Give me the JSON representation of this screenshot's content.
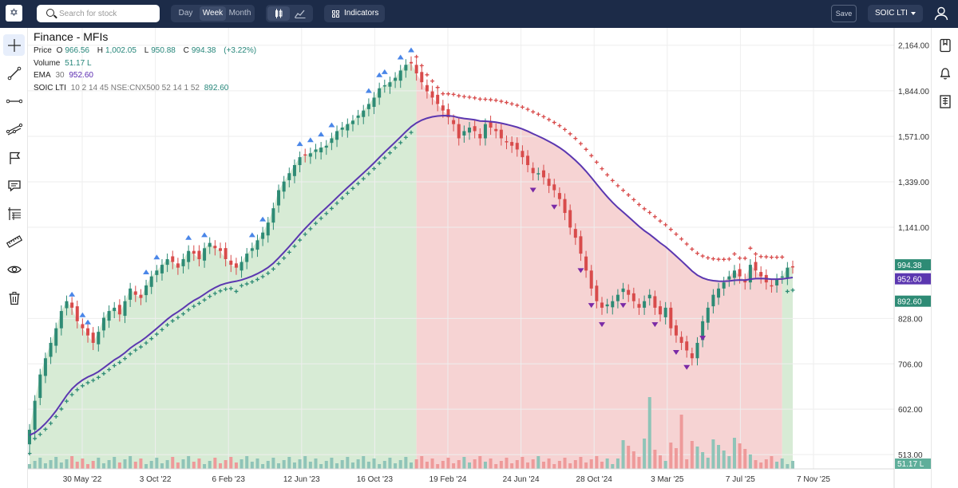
{
  "toolbar": {
    "logo": "✡",
    "search_placeholder": "Search for stock",
    "timeframes": [
      "Day",
      "Week",
      "Month"
    ],
    "active_timeframe": "Week",
    "indicators_label": "Indicators",
    "save_label": "Save",
    "symbol_label": "SOIC LTI"
  },
  "left_tools": [
    "crosshair-icon",
    "trend-line-icon",
    "horizontal-line-icon",
    "channel-icon",
    "flag-icon",
    "comment-icon",
    "fib-icon",
    "ruler-icon",
    "eye-icon",
    "trash-icon"
  ],
  "right_tools": [
    "bookmark-icon",
    "bell-icon",
    "building-icon"
  ],
  "legend": {
    "title": "Finance - MFIs",
    "price_label": "Price",
    "o_label": "O",
    "o_value": "966.56",
    "h_label": "H",
    "h_value": "1,002.05",
    "l_label": "L",
    "l_value": "950.88",
    "c_label": "C",
    "c_value": "994.38",
    "change": "(+3.22%)",
    "volume_label": "Volume",
    "volume_value": "51.17 L",
    "ema_label": "EMA",
    "ema_period": "30",
    "ema_value": "952.60",
    "soic_label": "SOIC LTI",
    "soic_params": "10 2 14 45 NSE:CNX500 52 14 1 52",
    "soic_value": "892.60"
  },
  "colors": {
    "up": "#2e8b75",
    "down": "#d84b4b",
    "ema": "#5b37b0",
    "bull_zone": "#d7ebd5",
    "bear_zone": "#f6d3d3",
    "signal_up": "#4a86e8",
    "signal_down": "#7a2aa6"
  },
  "chart_data": {
    "type": "candlestick",
    "title": "Finance - MFIs",
    "y_ticks": [
      "2,164.00",
      "1,844.00",
      "1,571.00",
      "1,339.00",
      "1,141.00",
      "828.00",
      "706.00",
      "602.00",
      "513.00"
    ],
    "x_ticks": [
      "30 May '22",
      "3 Oct '22",
      "6 Feb '23",
      "12 Jun '23",
      "16 Oct '23",
      "19 Feb '24",
      "24 Jun '24",
      "28 Oct '24",
      "3 Mar '25",
      "7 Jul '25",
      "7 Nov '25"
    ],
    "scale": "log",
    "price_labels": {
      "close": "994.38",
      "ema": "952.60",
      "soic": "892.60",
      "volume": "51.17 L"
    },
    "weekly_close": [
      560,
      620,
      680,
      720,
      760,
      800,
      850,
      880,
      860,
      820,
      800,
      780,
      760,
      790,
      830,
      850,
      860,
      840,
      880,
      920,
      900,
      890,
      930,
      960,
      980,
      1000,
      1020,
      1010,
      990,
      1020,
      1050,
      1040,
      1020,
      1060,
      1080,
      1060,
      1050,
      1020,
      1000,
      990,
      1010,
      1040,
      1060,
      1090,
      1120,
      1160,
      1220,
      1300,
      1340,
      1380,
      1420,
      1460,
      1470,
      1480,
      1500,
      1510,
      1520,
      1560,
      1600,
      1620,
      1640,
      1660,
      1690,
      1720,
      1760,
      1800,
      1860,
      1880,
      1900,
      1930,
      1980,
      2020,
      2030,
      1960,
      1900,
      1840,
      1800,
      1760,
      1720,
      1680,
      1640,
      1560,
      1600,
      1620,
      1600,
      1560,
      1640,
      1620,
      1600,
      1560,
      1540,
      1520,
      1500,
      1460,
      1420,
      1380,
      1380,
      1360,
      1320,
      1300,
      1260,
      1200,
      1140,
      1100,
      1040,
      980,
      920,
      880,
      860,
      870,
      880,
      900,
      920,
      900,
      880,
      860,
      880,
      900,
      860,
      840,
      860,
      800,
      780,
      760,
      740,
      720,
      760,
      820,
      860,
      900,
      920,
      940,
      960,
      980,
      960,
      940,
      1000,
      980,
      960,
      940,
      930,
      950,
      960,
      990,
      994.38
    ],
    "ema_period": 30,
    "volume_label": "Volume",
    "volume_unit": "L"
  }
}
